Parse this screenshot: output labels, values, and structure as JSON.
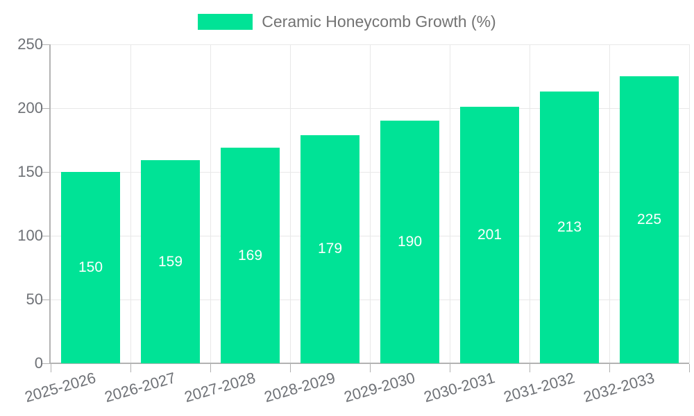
{
  "chart_data": {
    "type": "bar",
    "categories": [
      "2025-2026",
      "2026-2027",
      "2027-2028",
      "2028-2029",
      "2029-2030",
      "2030-2031",
      "2031-2032",
      "2032-2033"
    ],
    "series": [
      {
        "name": "Ceramic Honeycomb Growth (%)",
        "color": "#00E396",
        "values": [
          150,
          159,
          169,
          179,
          190,
          201,
          213,
          225
        ]
      }
    ],
    "xlabel": "",
    "ylabel": "",
    "ylim": [
      0,
      250
    ],
    "yticks": [
      0,
      50,
      100,
      150,
      200,
      250
    ],
    "grid": true,
    "legend_position": "top",
    "value_labels_position": "center",
    "colors": {
      "background": "#ffffff",
      "bar": "#00E396",
      "axis_label": "#6e7176",
      "legend_label": "#737373",
      "value_label": "#ffffff",
      "gridline": "#e8e8e8",
      "axis_line": "#b3b3b3",
      "tick": "#b0b0b0"
    }
  }
}
